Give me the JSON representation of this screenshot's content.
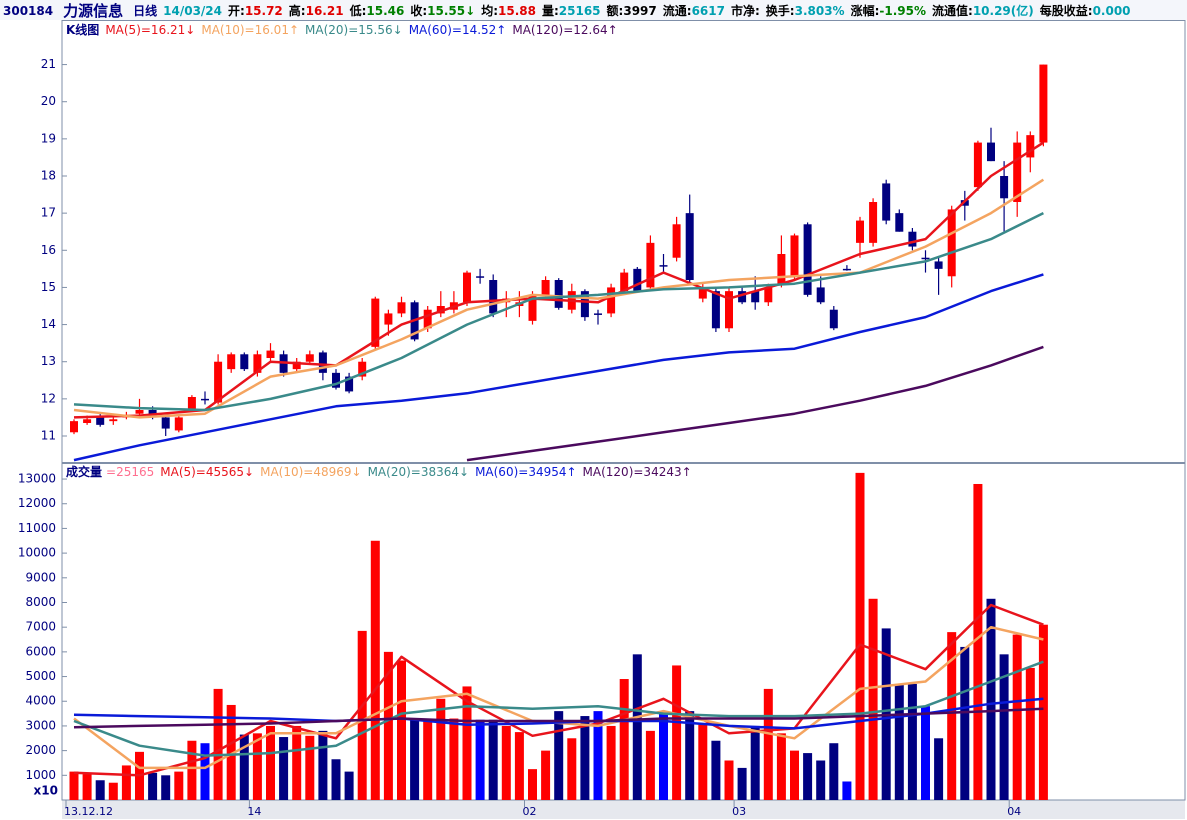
{
  "header": {
    "code": "300184",
    "name": "力源信息",
    "period": "日线",
    "date": "14/03/24",
    "items": [
      {
        "label": "开:",
        "value": "15.72",
        "color": "#e00000"
      },
      {
        "label": "高:",
        "value": "16.21",
        "color": "#e00000"
      },
      {
        "label": "低:",
        "value": "15.46",
        "color": "#008000"
      },
      {
        "label": "收:",
        "value": "15.55↓",
        "color": "#008000"
      },
      {
        "label": "均:",
        "value": "15.88",
        "color": "#e00000"
      },
      {
        "label": "量:",
        "value": "25165",
        "color": "#00a0b0"
      },
      {
        "label": "额:",
        "value": "3997",
        "color": "#000000"
      },
      {
        "label": "流通:",
        "value": "6617",
        "color": "#00a0b0"
      },
      {
        "label": "市净:"
      },
      {
        "label": "换手:",
        "value": "3.803%",
        "color": "#00a0b0"
      },
      {
        "label": "涨幅:",
        "value": "-1.95%",
        "color": "#008000"
      },
      {
        "label": "流通值:",
        "value": "10.29(亿)",
        "color": "#00a0b0"
      },
      {
        "label": "每股收益:",
        "value": "0.000",
        "color": "#00a0b0"
      }
    ]
  },
  "chart_data": [
    {
      "type": "candlestick",
      "title": "K线图",
      "open": [
        11.1,
        11.35,
        11.5,
        11.4,
        11.5,
        11.6,
        11.7,
        11.5,
        11.15,
        11.7,
        12.0,
        11.9,
        12.8,
        13.2,
        12.7,
        13.1,
        13.2,
        12.8,
        13.0,
        13.25,
        12.7,
        12.6,
        12.6,
        13.4,
        14.0,
        14.3,
        14.6,
        13.9,
        14.3,
        14.4,
        14.6,
        15.3,
        15.2,
        14.6,
        14.5,
        14.1,
        14.8,
        15.2,
        14.4,
        14.9,
        14.3,
        14.3,
        14.9,
        15.5,
        15.0,
        15.6,
        15.8,
        17.0,
        14.7,
        14.9,
        13.9,
        14.9,
        14.9,
        14.6,
        15.1,
        15.3,
        16.7,
        15.0,
        14.4,
        15.5,
        16.2,
        16.2,
        17.8,
        17.0,
        16.5,
        15.8,
        15.7,
        15.3,
        17.35,
        17.7,
        18.9,
        18.0,
        17.3,
        18.5,
        18.9
      ],
      "high": [
        11.45,
        11.55,
        11.6,
        11.55,
        11.65,
        12.0,
        11.8,
        11.55,
        11.55,
        12.1,
        12.2,
        13.2,
        13.25,
        13.25,
        13.3,
        13.5,
        13.3,
        13.1,
        13.3,
        13.3,
        12.8,
        12.7,
        13.1,
        14.75,
        14.4,
        14.75,
        14.65,
        14.5,
        14.9,
        14.9,
        15.45,
        15.5,
        15.35,
        14.9,
        14.9,
        14.9,
        15.3,
        15.25,
        15.1,
        14.95,
        14.4,
        15.1,
        15.5,
        15.55,
        16.4,
        15.9,
        16.9,
        17.5,
        15.1,
        15.0,
        15.0,
        15.0,
        15.3,
        15.1,
        16.4,
        16.45,
        16.75,
        15.3,
        14.5,
        15.6,
        16.9,
        17.4,
        17.9,
        17.1,
        16.6,
        16.0,
        15.8,
        17.2,
        17.6,
        18.95,
        19.3,
        18.4,
        19.2,
        19.2,
        21.0
      ],
      "low": [
        11.05,
        11.3,
        11.25,
        11.3,
        11.45,
        11.55,
        11.45,
        11.0,
        11.1,
        11.65,
        11.85,
        11.85,
        12.7,
        12.75,
        12.6,
        13.0,
        12.6,
        12.7,
        12.95,
        12.5,
        12.25,
        12.15,
        12.5,
        13.3,
        13.7,
        14.2,
        13.55,
        13.8,
        14.2,
        14.3,
        14.5,
        15.1,
        14.2,
        14.2,
        14.2,
        14.0,
        14.7,
        14.4,
        14.3,
        14.1,
        14.0,
        14.2,
        14.8,
        14.85,
        14.9,
        15.4,
        15.7,
        15.1,
        14.6,
        13.8,
        13.8,
        14.55,
        14.4,
        14.5,
        15.0,
        15.2,
        14.75,
        14.55,
        13.85,
        15.45,
        15.8,
        16.1,
        16.7,
        16.5,
        16.0,
        15.4,
        14.8,
        15.0,
        16.8,
        17.6,
        18.4,
        16.5,
        16.9,
        18.1,
        18.8
      ],
      "close": [
        11.4,
        11.45,
        11.3,
        11.45,
        11.55,
        11.7,
        11.5,
        11.2,
        11.5,
        12.05,
        12.0,
        13.0,
        13.2,
        12.8,
        13.2,
        13.3,
        12.7,
        13.0,
        13.2,
        12.7,
        12.3,
        12.2,
        13.0,
        14.7,
        14.3,
        14.6,
        13.6,
        14.4,
        14.5,
        14.6,
        15.4,
        15.3,
        14.3,
        14.7,
        14.6,
        14.8,
        15.2,
        14.45,
        14.9,
        14.2,
        14.3,
        15.0,
        15.4,
        14.9,
        16.2,
        15.6,
        16.7,
        15.2,
        15.0,
        13.9,
        14.9,
        14.6,
        14.6,
        15.0,
        15.9,
        16.4,
        14.8,
        14.6,
        13.9,
        15.5,
        16.8,
        17.3,
        16.8,
        16.5,
        16.1,
        15.8,
        15.5,
        17.1,
        17.2,
        18.9,
        18.4,
        17.4,
        18.9,
        19.1,
        21.0
      ],
      "up_color": "#ff0000",
      "down_color": "#000080",
      "flat_color": "#0000ff",
      "ylim": [
        10.3,
        22.2
      ],
      "yticks": [
        11,
        12,
        13,
        14,
        15,
        16,
        17,
        18,
        19,
        20,
        21
      ],
      "ma_index": [
        0,
        5,
        10,
        15,
        20,
        25,
        30,
        35,
        40,
        45,
        50,
        55,
        60,
        65,
        70,
        74
      ],
      "series": [
        {
          "name": "MA(5)=16.21↓",
          "color": "#e8141c",
          "values": [
            11.5,
            11.55,
            11.7,
            13.0,
            12.9,
            14.0,
            14.6,
            14.7,
            14.6,
            15.4,
            14.7,
            15.2,
            15.9,
            16.3,
            18.0,
            18.9
          ]
        },
        {
          "name": "MA(10)=16.01↑",
          "color": "#f4a460",
          "values": [
            11.7,
            11.5,
            11.6,
            12.6,
            12.9,
            13.6,
            14.4,
            14.8,
            14.7,
            15.0,
            15.2,
            15.3,
            15.4,
            16.1,
            17.0,
            17.9
          ]
        },
        {
          "name": "MA(20)=15.56↓",
          "color": "#3a8a8a",
          "values": [
            11.85,
            11.75,
            11.7,
            12.0,
            12.4,
            13.1,
            14.0,
            14.7,
            14.8,
            14.95,
            15.0,
            15.1,
            15.4,
            15.7,
            16.3,
            17.0
          ]
        },
        {
          "name": "MA(60)=14.52↑",
          "color": "#0a1ad8",
          "values": [
            10.35,
            10.75,
            11.1,
            11.45,
            11.8,
            11.95,
            12.15,
            12.45,
            12.75,
            13.05,
            13.25,
            13.35,
            13.8,
            14.2,
            14.9,
            15.35
          ]
        },
        {
          "name": "MA(120)=12.64↑",
          "color": "#4b0a5e",
          "values": [
            null,
            null,
            null,
            null,
            null,
            null,
            10.35,
            10.6,
            10.85,
            11.1,
            11.35,
            11.6,
            11.95,
            12.35,
            12.9,
            13.4
          ]
        }
      ]
    },
    {
      "type": "volume",
      "title": "成交量",
      "value_label": "=25165",
      "value_label_color": "#ff6f8f",
      "values": [
        1150,
        1050,
        800,
        700,
        1400,
        1950,
        1100,
        1000,
        1150,
        2400,
        2300,
        4500,
        3850,
        2650,
        2700,
        3000,
        2550,
        3000,
        2600,
        2800,
        1650,
        1150,
        6850,
        10500,
        6000,
        5650,
        3250,
        3200,
        4100,
        3300,
        4600,
        3250,
        3250,
        3000,
        2750,
        1250,
        2000,
        3600,
        2500,
        3400,
        3600,
        3000,
        4900,
        5900,
        2800,
        3600,
        5450,
        3600,
        3050,
        2400,
        1600,
        1300,
        3000,
        4500,
        2700,
        2000,
        1900,
        1600,
        2300,
        750,
        13250,
        8150,
        6950,
        4700,
        4700,
        3800,
        2500,
        6800,
        6200,
        12800,
        8150,
        5900,
        6700,
        5350,
        7100
      ],
      "unit_label": "x10",
      "ylim": [
        0,
        13650
      ],
      "yticks": [
        1000,
        2000,
        3000,
        4000,
        5000,
        6000,
        7000,
        8000,
        9000,
        10000,
        11000,
        12000,
        13000
      ],
      "xticks": [
        {
          "value": 0,
          "label": "13.12.12"
        },
        {
          "value": 14,
          "label": "14"
        },
        {
          "value": 35,
          "label": "02"
        },
        {
          "value": 51,
          "label": "03"
        },
        {
          "value": 72,
          "label": "04"
        }
      ],
      "ma_index": [
        0,
        5,
        10,
        15,
        20,
        25,
        30,
        35,
        40,
        45,
        50,
        55,
        60,
        65,
        70,
        74
      ],
      "series": [
        {
          "name": "MA(5)=45565↓",
          "color": "#e8141c",
          "values": [
            1100,
            1000,
            1700,
            3200,
            2500,
            5800,
            4000,
            2600,
            3100,
            4100,
            2700,
            2900,
            6300,
            5300,
            7900,
            7100
          ]
        },
        {
          "name": "MA(10)=48969↓",
          "color": "#f4a460",
          "values": [
            3300,
            1300,
            1300,
            2700,
            2700,
            4000,
            4300,
            3200,
            3000,
            3600,
            3000,
            2500,
            4500,
            4800,
            7000,
            6500
          ]
        },
        {
          "name": "MA(20)=38364↓",
          "color": "#3a8a8a",
          "values": [
            3200,
            2200,
            1800,
            1900,
            2200,
            3500,
            3800,
            3700,
            3800,
            3500,
            3400,
            3400,
            3500,
            3800,
            4800,
            5600
          ]
        },
        {
          "name": "MA(60)=34954↑",
          "color": "#0a1ad8",
          "values": [
            3450,
            3400,
            3350,
            3300,
            3200,
            3300,
            3050,
            3100,
            3200,
            3200,
            3000,
            2900,
            3200,
            3500,
            3900,
            4100
          ]
        },
        {
          "name": "MA(120)=34243↑",
          "color": "#4b0a5e",
          "values": [
            2950,
            3000,
            3050,
            3100,
            3200,
            3300,
            3200,
            3200,
            3200,
            3300,
            3300,
            3300,
            3400,
            3500,
            3600,
            3700
          ]
        }
      ]
    }
  ]
}
